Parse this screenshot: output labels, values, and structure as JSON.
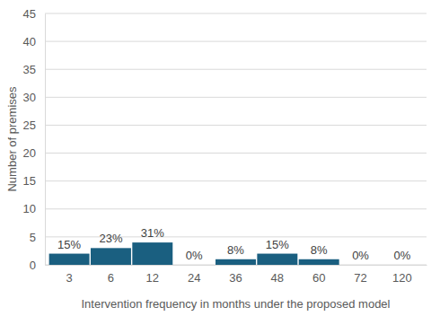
{
  "chart_data": {
    "type": "bar",
    "x_label": "Intervention frequency in months under the proposed model",
    "y_label": "Number of premises",
    "categories": [
      "3",
      "6",
      "12",
      "24",
      "36",
      "48",
      "60",
      "72",
      "120"
    ],
    "values": [
      2,
      3,
      4,
      0,
      1,
      2,
      1,
      0,
      0
    ],
    "bar_labels": [
      "15%",
      "23%",
      "31%",
      "0%",
      "8%",
      "15%",
      "8%",
      "0%",
      "0%"
    ],
    "color": "#1a5f80",
    "ylim": [
      0,
      45
    ],
    "yticks": [
      0,
      5,
      10,
      15,
      20,
      25,
      30,
      35,
      40,
      45
    ],
    "grid": true
  }
}
